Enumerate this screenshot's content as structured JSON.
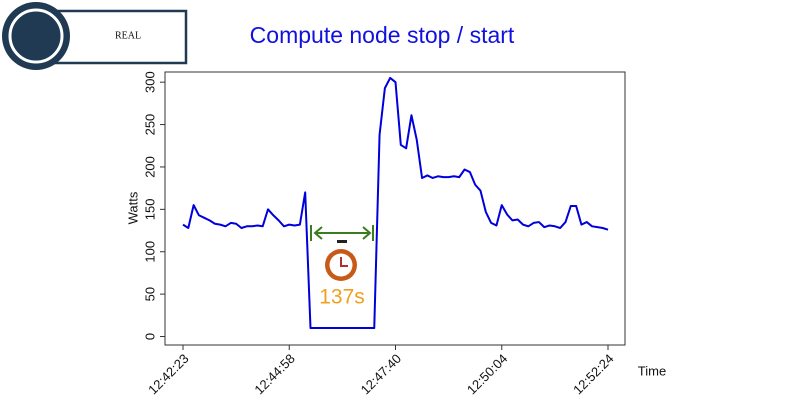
{
  "badge": "REAL",
  "chart_data": {
    "type": "line",
    "title": "Compute node stop / start",
    "y_label": "Watts",
    "x_label": "Time",
    "categories": [
      "12:42:23",
      null,
      null,
      null,
      null,
      null,
      null,
      null,
      null,
      null,
      null,
      null,
      null,
      null,
      null,
      null,
      null,
      null,
      null,
      null,
      "12:44:58",
      null,
      null,
      null,
      null,
      null,
      null,
      null,
      null,
      null,
      null,
      null,
      null,
      null,
      null,
      null,
      null,
      null,
      null,
      null,
      "12:47:40",
      null,
      null,
      null,
      null,
      null,
      null,
      null,
      null,
      null,
      null,
      null,
      null,
      null,
      null,
      null,
      null,
      null,
      null,
      null,
      "12:50:04",
      null,
      null,
      null,
      null,
      null,
      null,
      null,
      null,
      null,
      null,
      null,
      null,
      null,
      null,
      null,
      null,
      null,
      null,
      null,
      "12:52:24"
    ],
    "series": [
      {
        "name": "Watts",
        "color": "#0000dd",
        "values": [
          132,
          128,
          155,
          143,
          140,
          137,
          133,
          132,
          130,
          134,
          133,
          128,
          130,
          130,
          131,
          130,
          150,
          143,
          137,
          130,
          132,
          131,
          132,
          170,
          10,
          10,
          10,
          10,
          10,
          10,
          10,
          10,
          10,
          10,
          10,
          10,
          10,
          238,
          293,
          305,
          300,
          226,
          222,
          261,
          232,
          187,
          190,
          187,
          189,
          188,
          188,
          189,
          188,
          197,
          194,
          179,
          172,
          147,
          134,
          131,
          155,
          144,
          137,
          138,
          132,
          130,
          134,
          135,
          129,
          131,
          130,
          128,
          135,
          154,
          154,
          132,
          135,
          130,
          129,
          128,
          126
        ]
      }
    ],
    "ylim": [
      -10,
      312
    ],
    "yticks": [
      0,
      50,
      100,
      150,
      200,
      250,
      300
    ],
    "annotation": "137s"
  }
}
